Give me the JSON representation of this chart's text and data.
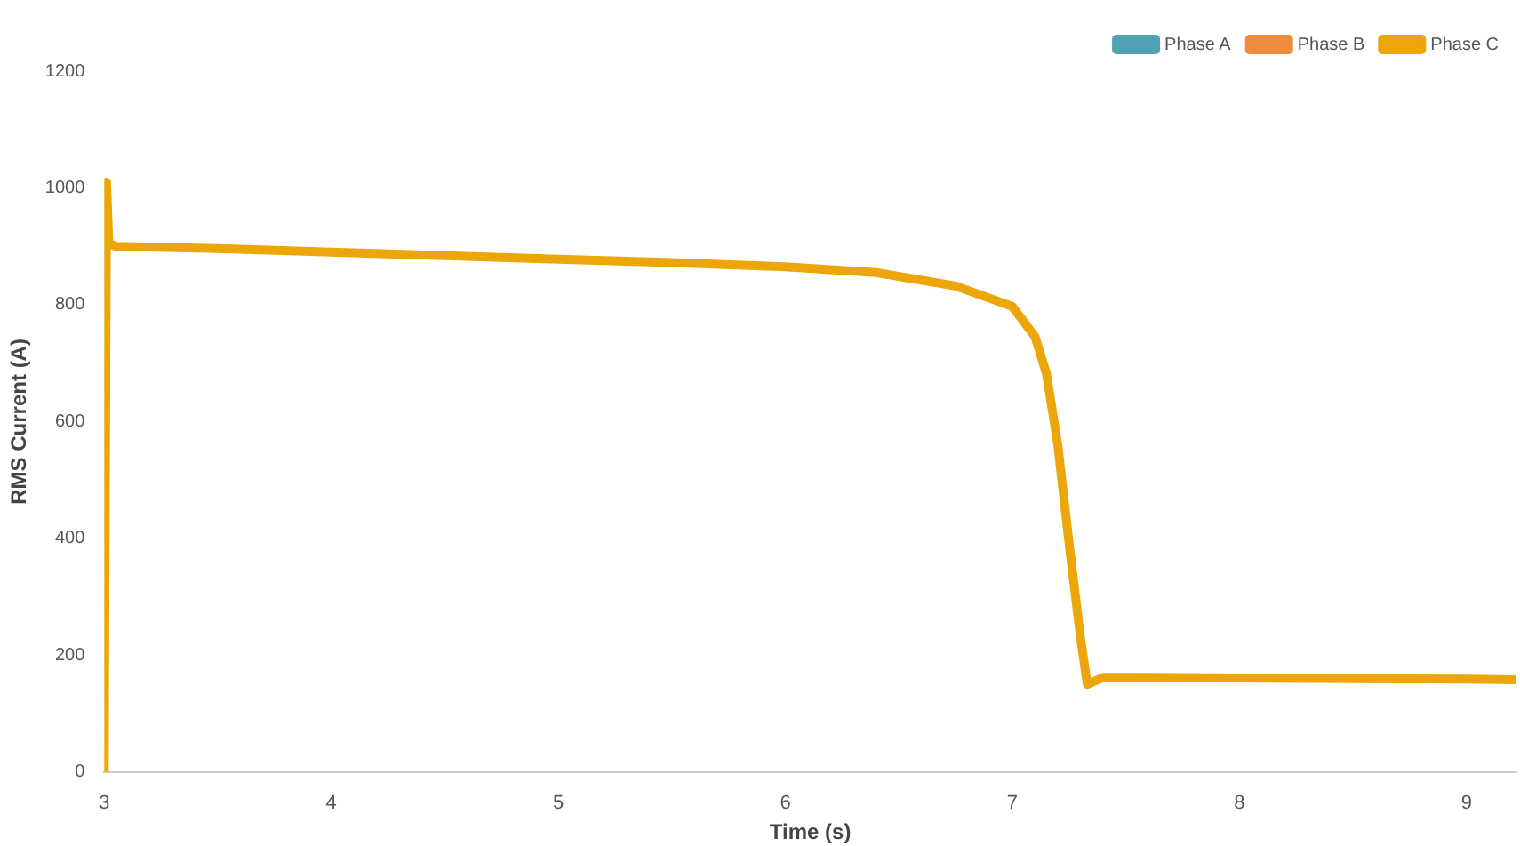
{
  "chart_data": {
    "type": "line",
    "xlabel": "Time (s)",
    "ylabel": "RMS Current (A)",
    "x": [
      3.0,
      3.01,
      3.02,
      3.05,
      3.5,
      4.0,
      4.5,
      5.0,
      5.5,
      6.0,
      6.4,
      6.75,
      7.0,
      7.1,
      7.15,
      7.2,
      7.25,
      7.3,
      7.33,
      7.4,
      7.6,
      8.0,
      8.5,
      9.0,
      9.22
    ],
    "series": [
      {
        "name": "Phase A",
        "color": "#4fa3b5",
        "values": [
          null,
          null,
          null,
          null,
          null,
          null,
          null,
          null,
          null,
          null,
          null,
          null,
          null,
          null,
          null,
          null,
          null,
          null,
          null,
          null,
          null,
          null,
          null,
          null,
          null
        ]
      },
      {
        "name": "Phase B",
        "color": "#f08a3c",
        "values": [
          null,
          null,
          null,
          null,
          null,
          null,
          null,
          null,
          null,
          null,
          null,
          null,
          null,
          null,
          null,
          null,
          null,
          null,
          null,
          null,
          null,
          null,
          null,
          null,
          null
        ]
      },
      {
        "name": "Phase C",
        "color": "#eca60a",
        "values": [
          0,
          1010,
          905,
          900,
          896,
          890,
          884,
          878,
          872,
          865,
          855,
          832,
          797,
          745,
          682,
          560,
          390,
          230,
          150,
          162,
          162,
          161,
          160,
          159,
          158
        ]
      }
    ],
    "xlim": [
      3,
      9.22
    ],
    "xticks": [
      3,
      4,
      5,
      6,
      7,
      8,
      9
    ],
    "ylim": [
      0,
      1200
    ],
    "yticks": [
      0,
      200,
      400,
      600,
      800,
      1000,
      1200
    ],
    "legend": "top right",
    "marker": "none",
    "line_style": "solid",
    "grid": false
  }
}
